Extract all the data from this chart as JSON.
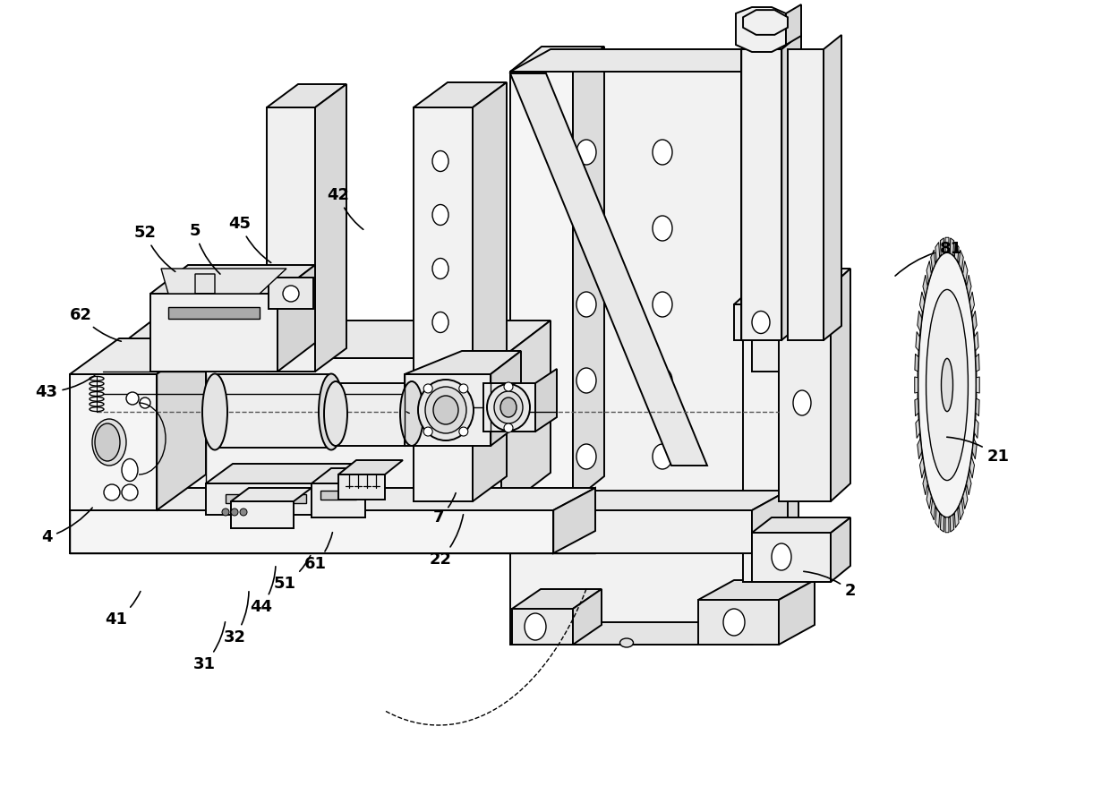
{
  "background_color": "#ffffff",
  "line_color": "#000000",
  "label_fontsize": 13,
  "figsize": [
    12.4,
    8.88
  ],
  "dpi": 100,
  "labels_data": [
    [
      "2",
      950,
      660,
      895,
      638
    ],
    [
      "4",
      52,
      600,
      105,
      565
    ],
    [
      "5",
      218,
      258,
      248,
      308
    ],
    [
      "7",
      490,
      578,
      510,
      548
    ],
    [
      "21",
      1115,
      510,
      1055,
      488
    ],
    [
      "22",
      492,
      625,
      518,
      572
    ],
    [
      "31",
      228,
      742,
      252,
      692
    ],
    [
      "32",
      262,
      712,
      278,
      658
    ],
    [
      "41",
      130,
      692,
      158,
      658
    ],
    [
      "42",
      378,
      218,
      408,
      258
    ],
    [
      "43",
      52,
      438,
      108,
      418
    ],
    [
      "44",
      292,
      678,
      308,
      630
    ],
    [
      "45",
      268,
      250,
      305,
      295
    ],
    [
      "51",
      318,
      652,
      348,
      618
    ],
    [
      "52",
      162,
      260,
      198,
      305
    ],
    [
      "61",
      352,
      630,
      372,
      592
    ],
    [
      "62",
      90,
      352,
      138,
      382
    ],
    [
      "81",
      1062,
      278,
      998,
      310
    ]
  ]
}
